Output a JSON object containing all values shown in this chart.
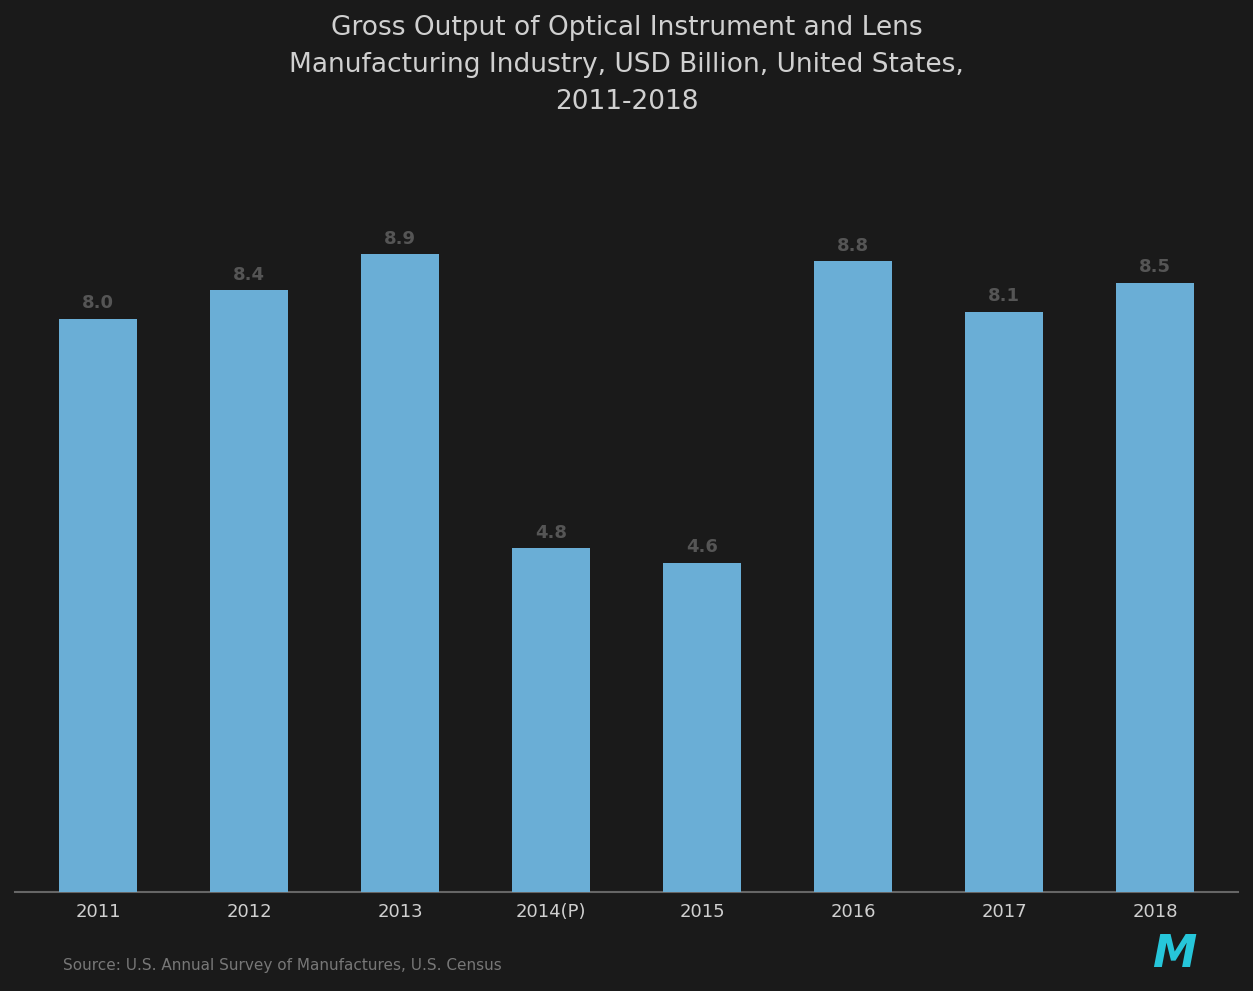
{
  "categories": [
    "2011",
    "2012",
    "2013",
    "2014(P)",
    "2015",
    "2016",
    "2017",
    "2018"
  ],
  "values": [
    8.0,
    8.4,
    8.9,
    4.8,
    4.6,
    8.8,
    8.1,
    8.5
  ],
  "bar_color": "#6aaed6",
  "title_line1": "Gross Output of Optical Instrument and Lens",
  "title_line2": "Manufacturing Industry, USD Billion, United States,",
  "title_line3": "2011-2018",
  "source_text": "Source: U.S. Annual Survey of Manufactures, U.S. Census",
  "background_color": "#1a1a1a",
  "plot_bg_color": "#1a1a1a",
  "text_color": "#d0d0d0",
  "bar_label_color": "#555555",
  "axis_color": "#666666",
  "ylim": [
    0,
    10.5
  ],
  "title_fontsize": 19,
  "label_fontsize": 13,
  "tick_fontsize": 13,
  "source_fontsize": 11,
  "bar_width": 0.52
}
